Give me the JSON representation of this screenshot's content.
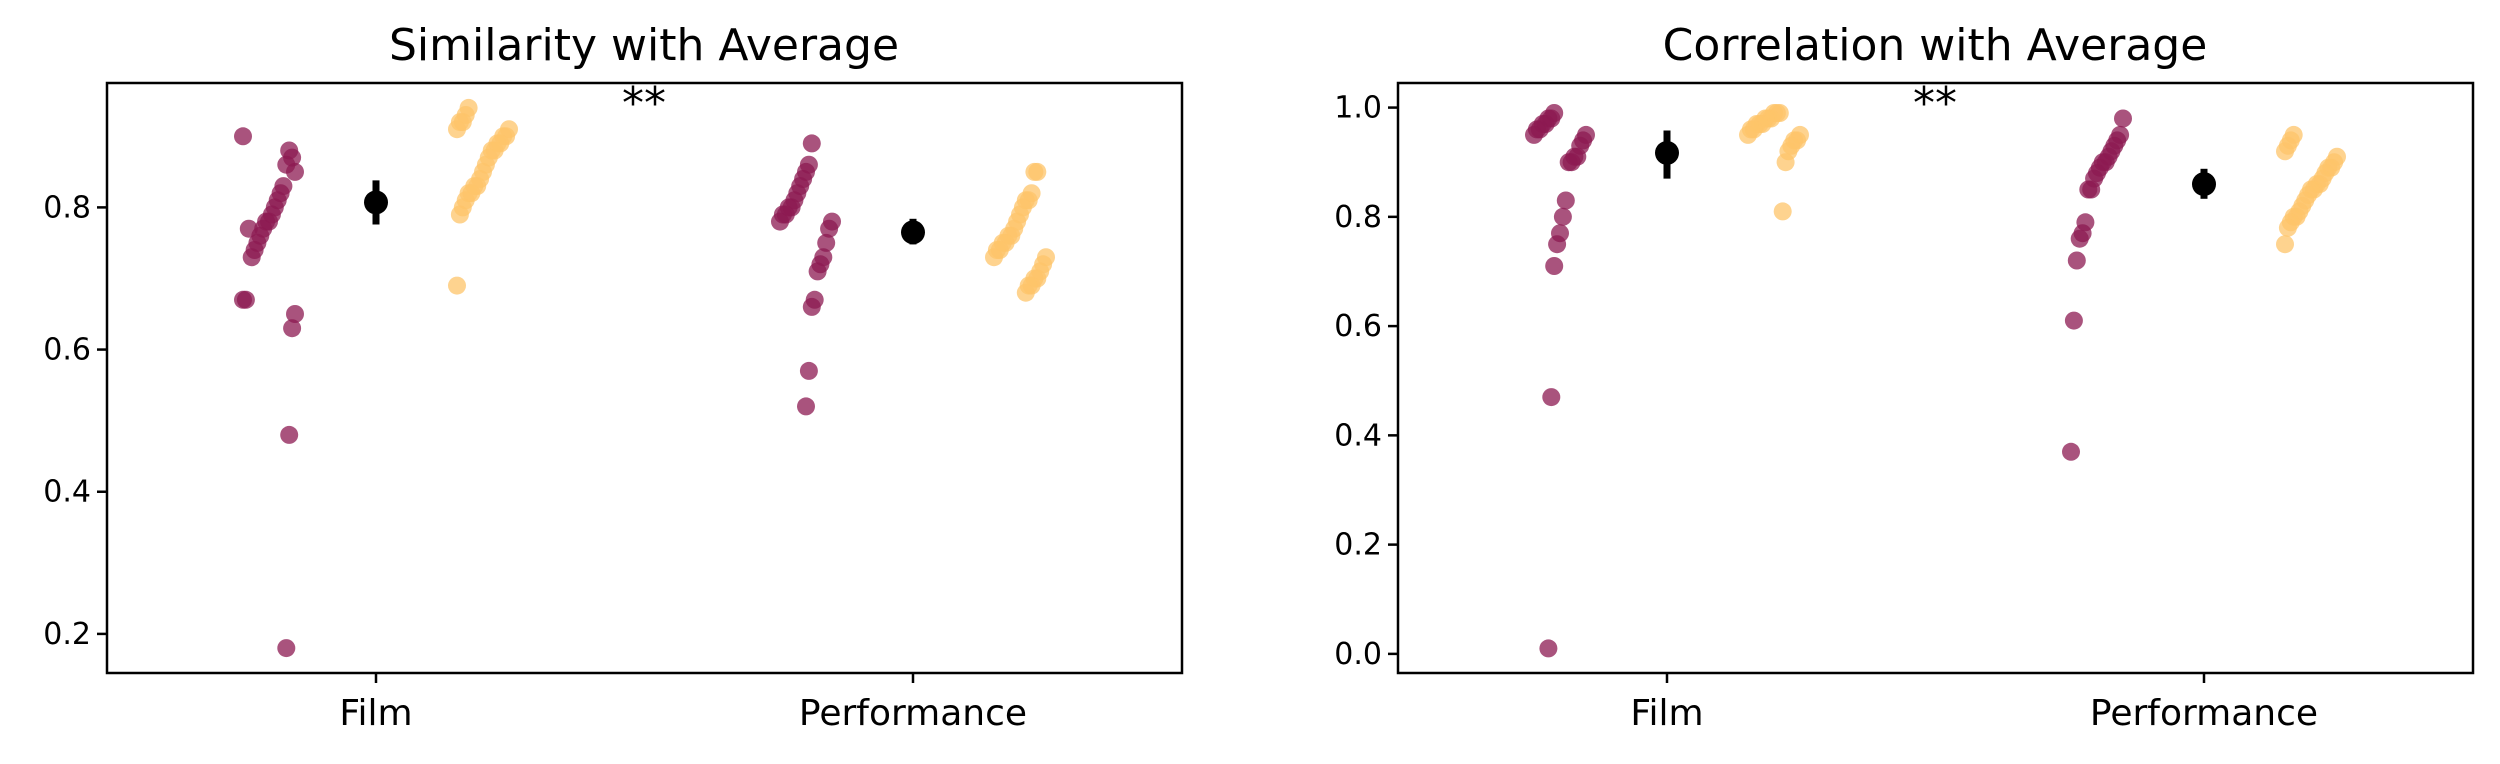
{
  "chart_data": [
    {
      "type": "scatter",
      "title": "Similarity with Average",
      "categories": [
        "Film",
        "Performance"
      ],
      "ylim": [
        0.145,
        0.975
      ],
      "yticks": [
        "0.2",
        "0.4",
        "0.6",
        "0.8"
      ],
      "significance": "**",
      "colors": {
        "group_a": "#8c1a52",
        "group_b": "#fdc46a",
        "mean": "#000000"
      },
      "series": [
        {
          "name": "group_a",
          "values": [
            [
              0.9,
              0.85,
              0.87,
              0.88,
              0.86,
              0.83,
              0.82,
              0.81,
              0.8,
              0.79,
              0.78,
              0.78,
              0.77,
              0.76,
              0.75,
              0.74,
              0.73,
              0.77,
              0.67,
              0.67,
              0.65,
              0.63,
              0.48,
              0.18
            ],
            [
              0.89,
              0.86,
              0.85,
              0.84,
              0.83,
              0.82,
              0.81,
              0.8,
              0.8,
              0.79,
              0.79,
              0.78,
              0.78,
              0.77,
              0.75,
              0.73,
              0.72,
              0.71,
              0.67,
              0.66,
              0.57,
              0.52
            ]
          ]
        },
        {
          "name": "group_b",
          "values": [
            [
              0.94,
              0.93,
              0.92,
              0.92,
              0.91,
              0.91,
              0.9,
              0.9,
              0.89,
              0.89,
              0.88,
              0.88,
              0.87,
              0.86,
              0.85,
              0.84,
              0.83,
              0.83,
              0.82,
              0.82,
              0.81,
              0.8,
              0.79,
              0.69
            ],
            [
              0.85,
              0.85,
              0.82,
              0.81,
              0.81,
              0.8,
              0.79,
              0.78,
              0.77,
              0.76,
              0.76,
              0.75,
              0.75,
              0.74,
              0.74,
              0.73,
              0.73,
              0.72,
              0.71,
              0.7,
              0.7,
              0.69,
              0.69,
              0.68
            ]
          ]
        }
      ],
      "means": [
        {
          "value": 0.807,
          "low": 0.776,
          "high": 0.838
        },
        {
          "value": 0.765,
          "low": 0.748,
          "high": 0.784
        }
      ]
    },
    {
      "type": "scatter",
      "title": "Correlation with Average",
      "categories": [
        "Film",
        "Performance"
      ],
      "ylim": [
        -0.035,
        1.045
      ],
      "yticks": [
        "0.0",
        "0.2",
        "0.4",
        "0.6",
        "0.8",
        "1.0"
      ],
      "significance": "**",
      "colors": {
        "group_a": "#8c1a52",
        "group_b": "#fdc46a",
        "mean": "#000000"
      },
      "series": [
        {
          "name": "group_a",
          "values": [
            [
              0.99,
              0.98,
              0.98,
              0.97,
              0.97,
              0.96,
              0.96,
              0.95,
              0.95,
              0.94,
              0.93,
              0.91,
              0.91,
              0.9,
              0.9,
              0.83,
              0.8,
              0.77,
              0.75,
              0.71,
              0.47,
              0.01
            ],
            [
              0.98,
              0.95,
              0.94,
              0.93,
              0.92,
              0.91,
              0.9,
              0.9,
              0.89,
              0.88,
              0.87,
              0.85,
              0.85,
              0.79,
              0.77,
              0.76,
              0.72,
              0.61,
              0.37
            ]
          ]
        },
        {
          "name": "group_b",
          "values": [
            [
              0.99,
              0.99,
              0.99,
              0.98,
              0.98,
              0.98,
              0.97,
              0.97,
              0.97,
              0.96,
              0.96,
              0.95,
              0.95,
              0.94,
              0.94,
              0.93,
              0.92,
              0.9,
              0.81
            ],
            [
              0.95,
              0.94,
              0.93,
              0.92,
              0.91,
              0.9,
              0.89,
              0.89,
              0.88,
              0.87,
              0.86,
              0.86,
              0.85,
              0.85,
              0.84,
              0.83,
              0.82,
              0.81,
              0.8,
              0.8,
              0.79,
              0.78,
              0.75
            ]
          ]
        }
      ],
      "means": [
        {
          "value": 0.917,
          "low": 0.87,
          "high": 0.958
        },
        {
          "value": 0.86,
          "low": 0.833,
          "high": 0.888
        }
      ]
    }
  ]
}
